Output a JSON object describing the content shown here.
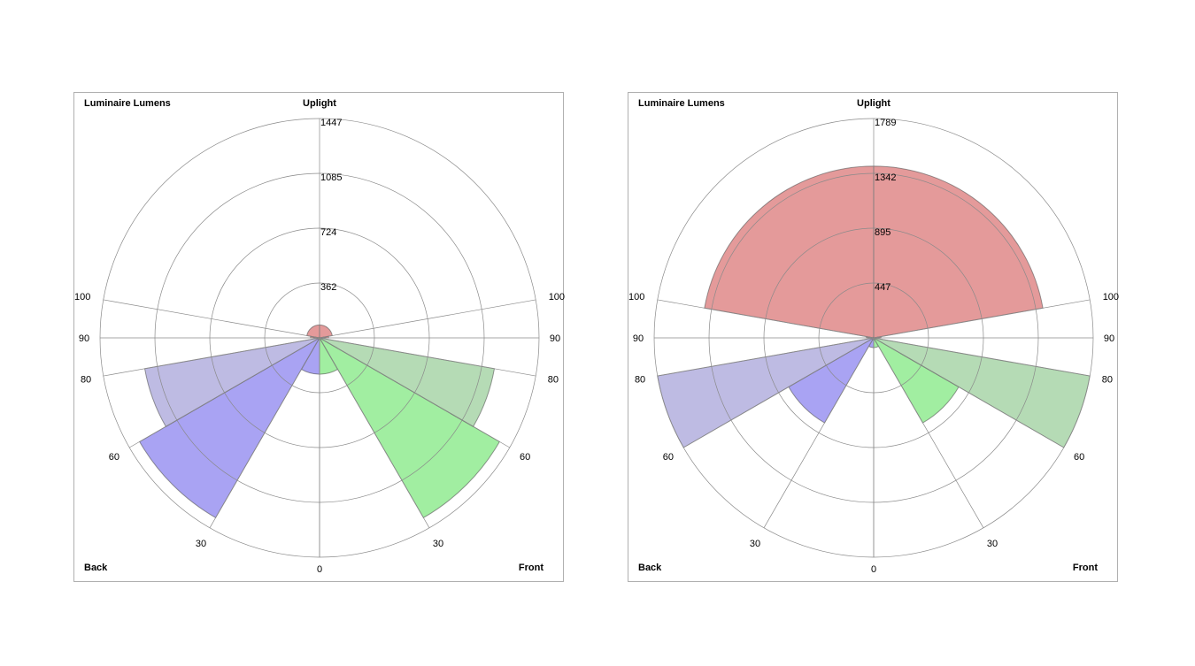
{
  "chart_data": [
    {
      "type": "polar",
      "title": "Luminaire Lumens",
      "top_label": "Uplight",
      "bottom_left_label": "Back",
      "bottom_right_label": "Front",
      "radial_ticks": [
        "362",
        "724",
        "1085",
        "1447"
      ],
      "radial_max": 1447,
      "angle_ticks": [
        "0",
        "30",
        "60",
        "80",
        "90",
        "100"
      ],
      "colors": {
        "back": "#8c84ef",
        "back_light": "#a8a4da",
        "front": "#82e882",
        "front_light": "#9ccf9c",
        "uplight": "#db7878"
      },
      "wedges": [
        {
          "side": "back",
          "from": 0,
          "to": 30,
          "value": 240,
          "color": "#8c84ef"
        },
        {
          "side": "back",
          "from": 30,
          "to": 60,
          "value": 1370,
          "color": "#8c84ef"
        },
        {
          "side": "back",
          "from": 60,
          "to": 80,
          "value": 1170,
          "color": "#a8a4da"
        },
        {
          "side": "back",
          "from": 80,
          "to": 90,
          "value": 20,
          "color": "#a8a4da"
        },
        {
          "side": "back",
          "from": 90,
          "to": 100,
          "value": 60,
          "color": "#db7878"
        },
        {
          "side": "back",
          "from": 100,
          "to": 180,
          "value": 85,
          "color": "#db7878"
        },
        {
          "side": "front",
          "from": 0,
          "to": 30,
          "value": 240,
          "color": "#82e882"
        },
        {
          "side": "front",
          "from": 30,
          "to": 60,
          "value": 1370,
          "color": "#82e882"
        },
        {
          "side": "front",
          "from": 60,
          "to": 80,
          "value": 1170,
          "color": "#9ccf9c"
        },
        {
          "side": "front",
          "from": 80,
          "to": 90,
          "value": 20,
          "color": "#9ccf9c"
        },
        {
          "side": "front",
          "from": 90,
          "to": 100,
          "value": 60,
          "color": "#db7878"
        },
        {
          "side": "front",
          "from": 100,
          "to": 180,
          "value": 85,
          "color": "#db7878"
        }
      ]
    },
    {
      "type": "polar",
      "title": "Luminaire Lumens",
      "top_label": "Uplight",
      "bottom_left_label": "Back",
      "bottom_right_label": "Front",
      "radial_ticks": [
        "447",
        "895",
        "1342",
        "1789"
      ],
      "radial_max": 1789,
      "angle_ticks": [
        "0",
        "30",
        "60",
        "80",
        "90",
        "100"
      ],
      "colors": {
        "back": "#8c84ef",
        "back_light": "#a8a4da",
        "front": "#82e882",
        "front_light": "#9ccf9c",
        "uplight": "#db7878"
      },
      "wedges": [
        {
          "side": "back",
          "from": 0,
          "to": 30,
          "value": 80,
          "color": "#8c84ef"
        },
        {
          "side": "back",
          "from": 30,
          "to": 60,
          "value": 800,
          "color": "#8c84ef"
        },
        {
          "side": "back",
          "from": 60,
          "to": 80,
          "value": 1800,
          "color": "#a8a4da"
        },
        {
          "side": "back",
          "from": 80,
          "to": 90,
          "value": 10,
          "color": "#a8a4da"
        },
        {
          "side": "back",
          "from": 90,
          "to": 100,
          "value": 60,
          "color": "#db7878"
        },
        {
          "side": "back",
          "from": 100,
          "to": 180,
          "value": 1400,
          "color": "#db7878"
        },
        {
          "side": "front",
          "from": 0,
          "to": 30,
          "value": 80,
          "color": "#82e882"
        },
        {
          "side": "front",
          "from": 30,
          "to": 60,
          "value": 800,
          "color": "#82e882"
        },
        {
          "side": "front",
          "from": 60,
          "to": 80,
          "value": 1800,
          "color": "#9ccf9c"
        },
        {
          "side": "front",
          "from": 80,
          "to": 90,
          "value": 10,
          "color": "#9ccf9c"
        },
        {
          "side": "front",
          "from": 90,
          "to": 100,
          "value": 60,
          "color": "#db7878"
        },
        {
          "side": "front",
          "from": 100,
          "to": 180,
          "value": 1400,
          "color": "#db7878"
        }
      ]
    }
  ]
}
